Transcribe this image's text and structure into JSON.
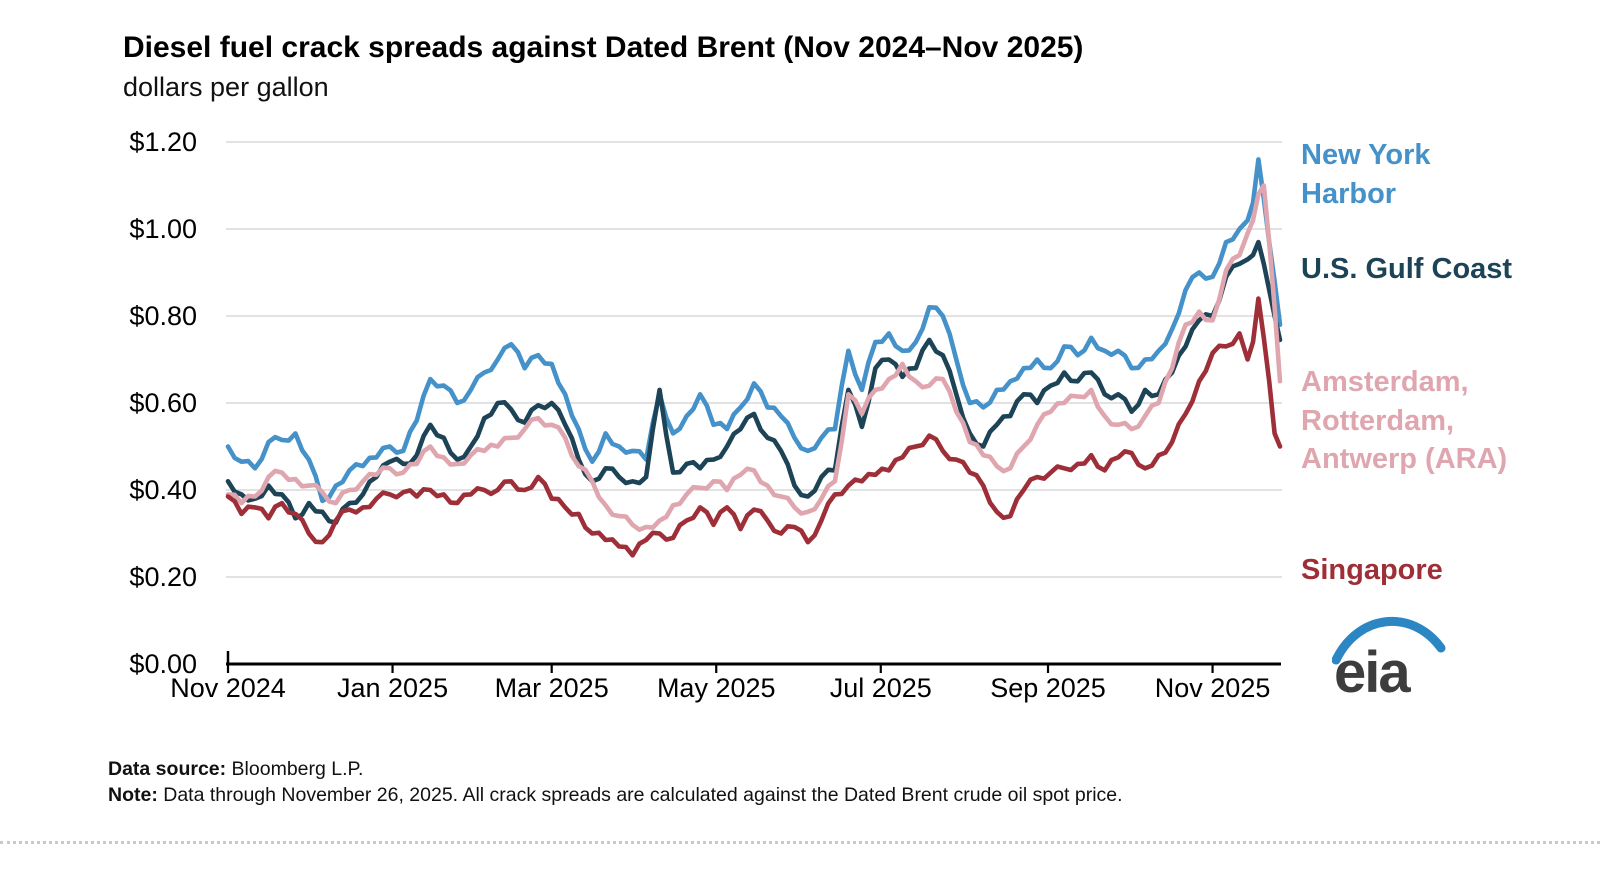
{
  "title": "Diesel fuel crack spreads against Dated Brent (Nov 2024–Nov 2025)",
  "subtitle": "dollars per gallon",
  "footer": {
    "source_label": "Data source:",
    "source_text": "Bloomberg L.P.",
    "note_label": "Note:",
    "note_text": "Data through November 26, 2025. All crack spreads are calculated against the Dated Brent crude oil spot price."
  },
  "logo": {
    "text": "eia",
    "arc_color": "#2C86C4",
    "text_color": "#3D3D3D"
  },
  "colors": {
    "gridline": "#D9D9D9",
    "axis": "#000000",
    "new_york_harbor": "#4591C9",
    "us_gulf_coast": "#1C4356",
    "ara": "#DFA6AF",
    "singapore": "#9E2F38"
  },
  "chart_data": {
    "type": "line",
    "title": "Diesel fuel crack spreads against Dated Brent (Nov 2024–Nov 2025)",
    "xlabel": "",
    "ylabel": "dollars per gallon",
    "ylim": [
      0,
      1.2
    ],
    "grid": "horizontal",
    "legend_position": "right",
    "x_unit": "days since Nov 1, 2024 (data through Nov 26, 2025)",
    "yticks": [
      {
        "value": 0.0,
        "label": "$0.00"
      },
      {
        "value": 0.2,
        "label": "$0.20"
      },
      {
        "value": 0.4,
        "label": "$0.40"
      },
      {
        "value": 0.6,
        "label": "$0.60"
      },
      {
        "value": 0.8,
        "label": "$0.80"
      },
      {
        "value": 1.0,
        "label": "$1.00"
      },
      {
        "value": 1.2,
        "label": "$1.20"
      }
    ],
    "xticks": [
      {
        "day": 0,
        "label": "Nov 2024"
      },
      {
        "day": 61,
        "label": "Jan 2025"
      },
      {
        "day": 120,
        "label": "Mar 2025"
      },
      {
        "day": 181,
        "label": "May 2025"
      },
      {
        "day": 242,
        "label": "Jul 2025"
      },
      {
        "day": 304,
        "label": "Sep 2025"
      },
      {
        "day": 365,
        "label": "Nov 2025"
      }
    ],
    "days": [
      0,
      5,
      10,
      15,
      20,
      25,
      30,
      35,
      40,
      45,
      50,
      55,
      60,
      65,
      70,
      75,
      80,
      85,
      90,
      95,
      100,
      105,
      110,
      115,
      120,
      125,
      130,
      135,
      140,
      145,
      150,
      155,
      160,
      165,
      170,
      175,
      180,
      185,
      190,
      195,
      200,
      205,
      210,
      215,
      220,
      225,
      230,
      235,
      240,
      245,
      250,
      255,
      260,
      265,
      270,
      275,
      280,
      285,
      290,
      295,
      300,
      305,
      310,
      315,
      320,
      325,
      330,
      335,
      340,
      345,
      350,
      355,
      360,
      365,
      370,
      375,
      378,
      380,
      382,
      384,
      386,
      388,
      390
    ],
    "series": [
      {
        "name": "New York Harbor",
        "color": "#4591C9",
        "values": [
          0.5,
          0.465,
          0.45,
          0.51,
          0.515,
          0.53,
          0.47,
          0.375,
          0.41,
          0.445,
          0.455,
          0.475,
          0.5,
          0.49,
          0.56,
          0.655,
          0.64,
          0.6,
          0.63,
          0.67,
          0.7,
          0.735,
          0.68,
          0.71,
          0.69,
          0.62,
          0.54,
          0.465,
          0.53,
          0.5,
          0.49,
          0.47,
          0.62,
          0.53,
          0.57,
          0.62,
          0.55,
          0.54,
          0.59,
          0.645,
          0.59,
          0.57,
          0.52,
          0.49,
          0.52,
          0.54,
          0.72,
          0.63,
          0.74,
          0.76,
          0.72,
          0.74,
          0.82,
          0.8,
          0.7,
          0.6,
          0.59,
          0.63,
          0.65,
          0.68,
          0.7,
          0.68,
          0.73,
          0.71,
          0.75,
          0.72,
          0.72,
          0.68,
          0.7,
          0.72,
          0.77,
          0.86,
          0.9,
          0.89,
          0.97,
          1.0,
          1.02,
          1.06,
          1.16,
          1.07,
          0.97,
          0.88,
          0.78
        ]
      },
      {
        "name": "U.S. Gulf Coast",
        "color": "#1C4356",
        "values": [
          0.42,
          0.39,
          0.38,
          0.41,
          0.39,
          0.335,
          0.37,
          0.35,
          0.325,
          0.37,
          0.39,
          0.43,
          0.465,
          0.46,
          0.48,
          0.55,
          0.52,
          0.47,
          0.5,
          0.565,
          0.6,
          0.585,
          0.555,
          0.595,
          0.6,
          0.55,
          0.47,
          0.42,
          0.45,
          0.43,
          0.42,
          0.43,
          0.63,
          0.44,
          0.46,
          0.45,
          0.47,
          0.5,
          0.54,
          0.575,
          0.52,
          0.49,
          0.41,
          0.385,
          0.43,
          0.445,
          0.63,
          0.545,
          0.68,
          0.7,
          0.66,
          0.68,
          0.745,
          0.71,
          0.62,
          0.53,
          0.5,
          0.55,
          0.57,
          0.62,
          0.6,
          0.64,
          0.67,
          0.65,
          0.67,
          0.62,
          0.62,
          0.58,
          0.63,
          0.62,
          0.67,
          0.73,
          0.79,
          0.8,
          0.89,
          0.92,
          0.93,
          0.94,
          0.97,
          0.92,
          0.86,
          0.8,
          0.745
        ]
      },
      {
        "name": "Amsterdam, Rotterdam, Antwerp (ARA)",
        "color": "#DFA6AF",
        "values": [
          0.39,
          0.37,
          0.385,
          0.43,
          0.44,
          0.425,
          0.41,
          0.395,
          0.37,
          0.4,
          0.42,
          0.435,
          0.45,
          0.44,
          0.46,
          0.5,
          0.475,
          0.46,
          0.48,
          0.49,
          0.5,
          0.52,
          0.54,
          0.565,
          0.55,
          0.52,
          0.455,
          0.42,
          0.365,
          0.34,
          0.32,
          0.315,
          0.33,
          0.365,
          0.39,
          0.405,
          0.42,
          0.4,
          0.435,
          0.445,
          0.41,
          0.385,
          0.36,
          0.35,
          0.38,
          0.42,
          0.62,
          0.575,
          0.63,
          0.655,
          0.69,
          0.65,
          0.64,
          0.655,
          0.58,
          0.51,
          0.48,
          0.455,
          0.45,
          0.5,
          0.55,
          0.58,
          0.6,
          0.615,
          0.63,
          0.57,
          0.55,
          0.54,
          0.57,
          0.6,
          0.68,
          0.78,
          0.81,
          0.79,
          0.905,
          0.94,
          0.99,
          1.02,
          1.08,
          1.1,
          0.97,
          0.82,
          0.65
        ]
      },
      {
        "name": "Singapore",
        "color": "#9E2F38",
        "values": [
          0.385,
          0.345,
          0.36,
          0.335,
          0.37,
          0.345,
          0.3,
          0.28,
          0.33,
          0.355,
          0.36,
          0.38,
          0.39,
          0.395,
          0.385,
          0.4,
          0.39,
          0.37,
          0.39,
          0.4,
          0.4,
          0.42,
          0.4,
          0.43,
          0.38,
          0.36,
          0.345,
          0.3,
          0.285,
          0.27,
          0.25,
          0.285,
          0.3,
          0.29,
          0.33,
          0.36,
          0.32,
          0.36,
          0.31,
          0.355,
          0.33,
          0.3,
          0.315,
          0.28,
          0.33,
          0.39,
          0.41,
          0.42,
          0.435,
          0.445,
          0.475,
          0.5,
          0.525,
          0.49,
          0.47,
          0.44,
          0.41,
          0.35,
          0.34,
          0.4,
          0.43,
          0.44,
          0.45,
          0.46,
          0.48,
          0.445,
          0.475,
          0.485,
          0.45,
          0.48,
          0.51,
          0.575,
          0.65,
          0.715,
          0.73,
          0.76,
          0.7,
          0.74,
          0.84,
          0.75,
          0.65,
          0.53,
          0.5
        ]
      }
    ]
  }
}
